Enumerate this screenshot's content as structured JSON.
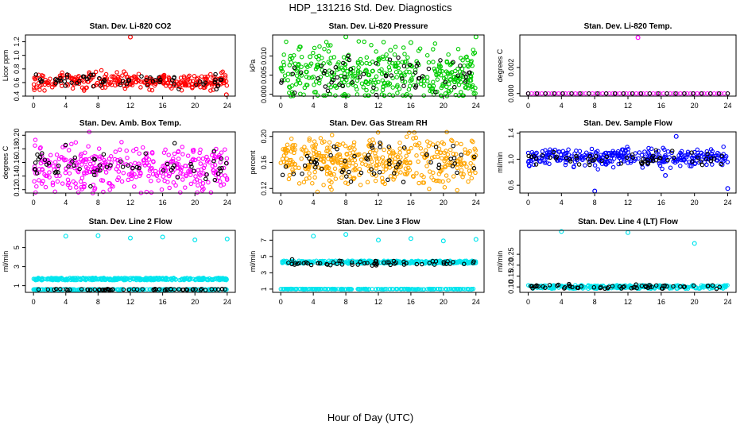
{
  "figure": {
    "title": "HDP_131216  Std. Dev. Diagnostics",
    "xlabel": "Hour of Day (UTC)"
  },
  "chart_data": [
    {
      "type": "scatter",
      "title": "Stan. Dev. Li-820 CO2",
      "ylabel": "Licor ppm",
      "xlim": [
        -1,
        25
      ],
      "ylim": [
        0.4,
        1.3
      ],
      "xticks": [
        "0",
        "4",
        "8",
        "12",
        "16",
        "20",
        "24"
      ],
      "yticks": [
        "0.4",
        "0.6",
        "0.8",
        "1.0",
        "1.2"
      ],
      "series": [
        {
          "color": "#ff0000",
          "pattern": "dense",
          "count": 300,
          "center": 0.62,
          "spread": 0.06,
          "outliers": [
            [
              12.0,
              1.27
            ],
            [
              23.9,
              0.42
            ]
          ]
        },
        {
          "color": "#000000",
          "pattern": "sparse",
          "count": 60,
          "center": 0.63,
          "spread": 0.05,
          "outliers": []
        }
      ]
    },
    {
      "type": "scatter",
      "title": "Stan. Dev. Li-820 Pressure",
      "ylabel": "kPa",
      "xlim": [
        -1,
        25
      ],
      "ylim": [
        -0.0005,
        0.0155
      ],
      "xticks": [
        "0",
        "4",
        "8",
        "12",
        "16",
        "20",
        "24"
      ],
      "yticks": [
        "0.000",
        "0.005",
        "0.010"
      ],
      "series": [
        {
          "color": "#00cc00",
          "pattern": "dense",
          "count": 420,
          "center": 0.005,
          "spread": 0.0035,
          "outliers": [
            [
              8.0,
              0.015
            ],
            [
              13.5,
              0.0115
            ],
            [
              16.0,
              0.0135
            ],
            [
              24.0,
              0.015
            ],
            [
              3.6,
              0.0098
            ],
            [
              8.2,
              0.0092
            ]
          ]
        },
        {
          "color": "#000000",
          "pattern": "sparse",
          "count": 60,
          "center": 0.005,
          "spread": 0.0022,
          "outliers": []
        }
      ]
    },
    {
      "type": "scatter",
      "title": "Stan. Dev. Li-820 Temp.",
      "ylabel": "degrees C",
      "xlim": [
        -1,
        25
      ],
      "ylim": [
        -0.0002,
        0.0045
      ],
      "xticks": [
        "0",
        "4",
        "8",
        "12",
        "16",
        "20",
        "24"
      ],
      "yticks": [
        "0.000",
        "0.002"
      ],
      "series": [
        {
          "color": "#ff00ff",
          "pattern": "flat",
          "count": 60,
          "center": 0.0,
          "spread": 0.0,
          "outliers": [
            [
              13.2,
              0.0043
            ]
          ]
        },
        {
          "color": "#000000",
          "pattern": "flat",
          "count": 24,
          "center": 0.0,
          "spread": 0.0,
          "outliers": []
        }
      ]
    },
    {
      "type": "scatter",
      "title": "Stan. Dev. Amb. Box Temp.",
      "ylabel": "degrees C",
      "xlim": [
        -1,
        25
      ],
      "ylim": [
        0.115,
        0.205
      ],
      "xticks": [
        "0",
        "4",
        "8",
        "12",
        "16",
        "20",
        "24"
      ],
      "yticks": [
        "0.12",
        "0.14",
        "0.16",
        "0.18",
        "0.20"
      ],
      "series": [
        {
          "color": "#ff00ff",
          "pattern": "dense",
          "count": 360,
          "center": 0.152,
          "spread": 0.018,
          "outliers": []
        },
        {
          "color": "#000000",
          "pattern": "sparse",
          "count": 60,
          "center": 0.155,
          "spread": 0.012,
          "outliers": []
        }
      ]
    },
    {
      "type": "scatter",
      "title": "Stan. Dev. Gas Stream RH",
      "ylabel": "percent",
      "xlim": [
        -1,
        25
      ],
      "ylim": [
        0.113,
        0.207
      ],
      "xticks": [
        "0",
        "4",
        "8",
        "12",
        "16",
        "20",
        "24"
      ],
      "yticks": [
        "0.12",
        "0.16",
        "0.20"
      ],
      "series": [
        {
          "color": "#ffa500",
          "pattern": "dense",
          "count": 420,
          "center": 0.162,
          "spread": 0.018,
          "outliers": []
        },
        {
          "color": "#000000",
          "pattern": "sparse",
          "count": 60,
          "center": 0.162,
          "spread": 0.014,
          "outliers": []
        }
      ]
    },
    {
      "type": "scatter",
      "title": "Stan. Dev. Sample Flow",
      "ylabel": "ml/min",
      "xlim": [
        -1,
        25
      ],
      "ylim": [
        0.48,
        1.42
      ],
      "xticks": [
        "0",
        "4",
        "8",
        "12",
        "16",
        "20",
        "24"
      ],
      "yticks": [
        "0.6",
        "1.0",
        "1.4"
      ],
      "series": [
        {
          "color": "#0000ff",
          "pattern": "dense",
          "count": 320,
          "center": 1.03,
          "spread": 0.07,
          "outliers": [
            [
              8.0,
              0.51
            ],
            [
              24.0,
              0.55
            ],
            [
              16.5,
              0.75
            ],
            [
              17.8,
              1.35
            ]
          ]
        },
        {
          "color": "#000000",
          "pattern": "sparse",
          "count": 60,
          "center": 1.0,
          "spread": 0.05,
          "outliers": []
        }
      ]
    },
    {
      "type": "scatter",
      "title": "Stan. Dev. Line 2 Flow",
      "ylabel": "ml/min",
      "xlim": [
        -1,
        25
      ],
      "ylim": [
        0.3,
        6.8
      ],
      "xticks": [
        "0",
        "4",
        "8",
        "12",
        "16",
        "20",
        "24"
      ],
      "yticks": [
        "1",
        "3",
        "5"
      ],
      "series": [
        {
          "color": "#00e5ee",
          "pattern": "band",
          "count": 320,
          "center": 1.7,
          "spread": 0.12,
          "outliers": [
            [
              4.0,
              6.2
            ],
            [
              8.0,
              6.25
            ],
            [
              12.0,
              6.0
            ],
            [
              16.0,
              6.1
            ],
            [
              20.0,
              5.8
            ],
            [
              24.0,
              5.9
            ]
          ]
        },
        {
          "color": "#00e5ee",
          "pattern": "band",
          "count": 200,
          "center": 0.6,
          "spread": 0.04,
          "outliers": []
        },
        {
          "color": "#000000",
          "pattern": "sparse",
          "count": 60,
          "center": 0.6,
          "spread": 0.03,
          "outliers": []
        }
      ]
    },
    {
      "type": "scatter",
      "title": "Stan. Dev. Line 3 Flow",
      "ylabel": "ml/min",
      "xlim": [
        -1,
        25
      ],
      "ylim": [
        0.6,
        8.2
      ],
      "xticks": [
        "0",
        "4",
        "8",
        "12",
        "16",
        "20",
        "24"
      ],
      "yticks": [
        "1",
        "3",
        "5",
        "7"
      ],
      "series": [
        {
          "color": "#00e5ee",
          "pattern": "band",
          "count": 320,
          "center": 4.3,
          "spread": 0.18,
          "outliers": [
            [
              4.0,
              7.5
            ],
            [
              8.0,
              7.7
            ],
            [
              12.0,
              7.0
            ],
            [
              16.0,
              7.2
            ],
            [
              20.0,
              6.9
            ],
            [
              24.0,
              7.1
            ]
          ]
        },
        {
          "color": "#00e5ee",
          "pattern": "band",
          "count": 200,
          "center": 1.0,
          "spread": 0.03,
          "outliers": []
        },
        {
          "color": "#000000",
          "pattern": "sparse",
          "count": 60,
          "center": 4.2,
          "spread": 0.15,
          "outliers": []
        }
      ]
    },
    {
      "type": "scatter",
      "title": "Stan. Dev. Line 4 (LT) Flow",
      "ylabel": "ml/min",
      "xlim": [
        -1,
        25
      ],
      "ylim": [
        0.075,
        0.36
      ],
      "xticks": [
        "0",
        "4",
        "8",
        "12",
        "16",
        "20",
        "24"
      ],
      "yticks": [
        "0.10",
        "0.15",
        "0.20",
        "0.25"
      ],
      "series": [
        {
          "color": "#00e5ee",
          "pattern": "band",
          "count": 300,
          "center": 0.1,
          "spread": 0.008,
          "outliers": [
            [
              4.0,
              0.355
            ],
            [
              12.0,
              0.35
            ],
            [
              20.0,
              0.3
            ]
          ]
        },
        {
          "color": "#000000",
          "pattern": "sparse",
          "count": 60,
          "center": 0.1,
          "spread": 0.006,
          "outliers": []
        }
      ]
    }
  ]
}
